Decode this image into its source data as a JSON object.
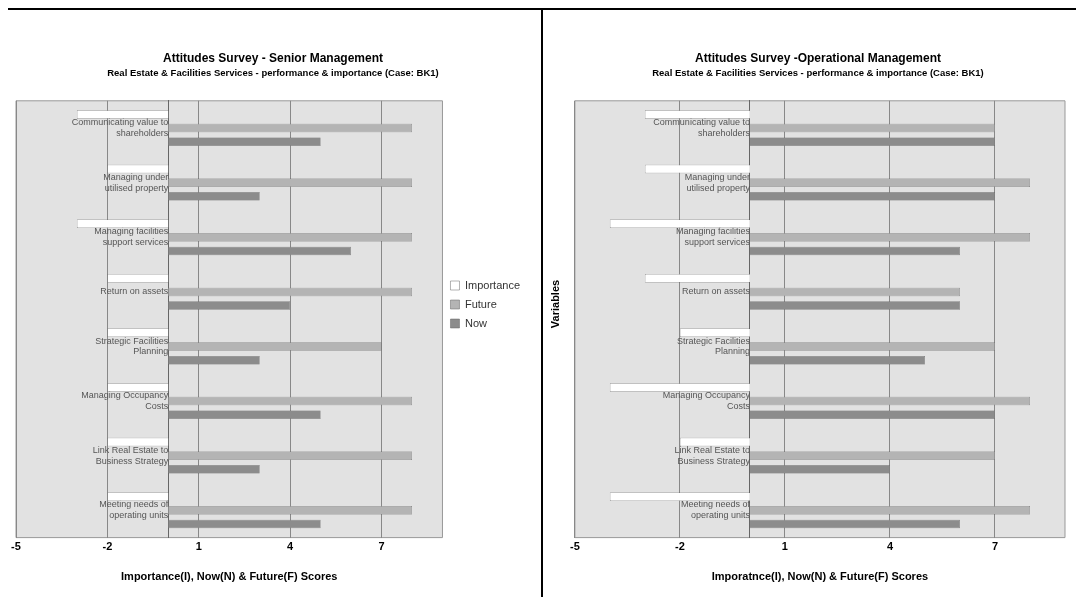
{
  "chart_data": [
    {
      "type": "bar",
      "orientation": "horizontal",
      "title": "Attitudes Survey - Senior Management",
      "subtitle": "Real Estate & Facilities Services - performance & importance (Case: BK1)",
      "xlabel": "Importance(I), Now(N) & Future(F) Scores",
      "categories": [
        "Communicating value to shareholders",
        "Managing under utilised property",
        "Managing facilities support services",
        "Return on assets",
        "Strategic Facilities Planning",
        "Managing Occupancy Costs",
        "Link Real Estate to Business Strategy",
        "Meeting needs of operating units"
      ],
      "series": [
        {
          "name": "Importance",
          "color": "#ffffff",
          "values": [
            -3,
            -2,
            -3,
            -2,
            -2,
            -2,
            -2,
            -2
          ]
        },
        {
          "name": "Future",
          "color": "#b4b4b4",
          "values": [
            8,
            8,
            8,
            8,
            7,
            8,
            8,
            8
          ]
        },
        {
          "name": "Now",
          "color": "#8c8c8c",
          "values": [
            5,
            3,
            6,
            4,
            3,
            5,
            3,
            5
          ]
        }
      ],
      "xlim": [
        -5,
        9
      ],
      "xticks": [
        -5,
        -2,
        1,
        4,
        7
      ],
      "grid": "x",
      "legend": "right"
    },
    {
      "type": "bar",
      "orientation": "horizontal",
      "title": "Attitudes Survey -Operational Management",
      "subtitle": "Real Estate & Facilities Services - performance & importance (Case: BK1)",
      "xlabel": "Imporatnce(I), Now(N) & Future(F) Scores",
      "ylabel": "Variables",
      "categories": [
        "Communicating value to shareholders",
        "Managing under utilised property",
        "Managing facilities support services",
        "Return on assets",
        "Strategic Facilities Planning",
        "Managing Occupancy Costs",
        "Link Real Estate to Business Strategy",
        "Meeting needs of operating units"
      ],
      "series": [
        {
          "color": "#ffffff",
          "values": [
            -3,
            -3,
            -4,
            -3,
            -2,
            -4,
            -2,
            -4
          ]
        },
        {
          "color": "#b4b4b4",
          "values": [
            7,
            8,
            8,
            6,
            7,
            8,
            7,
            8
          ]
        },
        {
          "color": "#8c8c8c",
          "values": [
            7,
            7,
            6,
            6,
            5,
            7,
            4,
            6
          ]
        }
      ],
      "xlim": [
        -5,
        9
      ],
      "xticks": [
        -5,
        -2,
        1,
        4,
        7
      ],
      "grid": "x"
    }
  ]
}
